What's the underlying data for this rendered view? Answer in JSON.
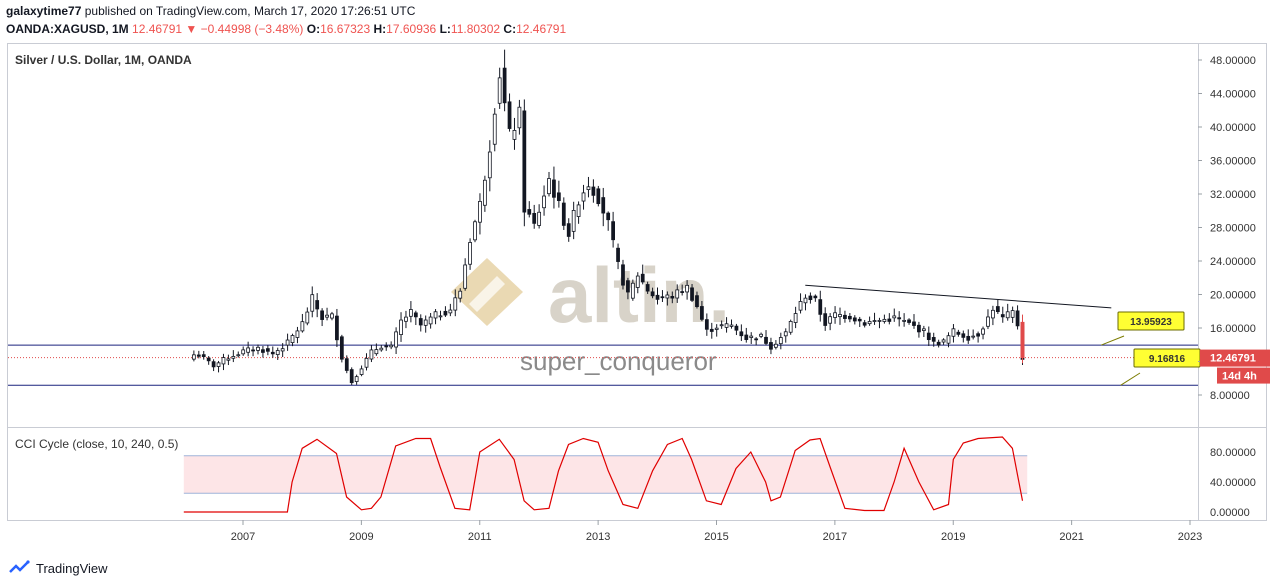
{
  "header": {
    "author": "galaxytime77",
    "published_text": "published on TradingView.com, March 17, 2020 17:26:51 UTC",
    "symbol": "OANDA:XAGUSD, 1M",
    "last": "12.46791",
    "change": "−0.44998 (−3.48%)",
    "o_label": "O:",
    "o_value": "16.67323",
    "h_label": "H:",
    "h_value": "17.60936",
    "l_label": "L:",
    "l_value": "11.80302",
    "c_label": "C:",
    "c_value": "12.46791"
  },
  "footer": {
    "brand": "TradingView"
  },
  "colors": {
    "up": "#131722",
    "down": "#e04a4a",
    "cci": "#e00000",
    "band_fill": "#fde5e7",
    "hline": "#1a237e"
  },
  "chart_data": [
    {
      "type": "candlestick",
      "title": "Silver / U.S. Dollar, 1M, OANDA",
      "ylim": [
        4.5,
        49.5
      ],
      "y_ticks": [
        {
          "v": 8,
          "label": "8.00000"
        },
        {
          "v": 12,
          "label": "12.00000"
        },
        {
          "v": 16,
          "label": "16.00000"
        },
        {
          "v": 20,
          "label": "20.00000"
        },
        {
          "v": 24,
          "label": "24.00000"
        },
        {
          "v": 28,
          "label": "28.00000"
        },
        {
          "v": 32,
          "label": "32.00000"
        },
        {
          "v": 36,
          "label": "36.00000"
        },
        {
          "v": 40,
          "label": "40.00000"
        },
        {
          "v": 44,
          "label": "44.00000"
        },
        {
          "v": 48,
          "label": "48.00000"
        }
      ],
      "x_range": [
        2005.83,
        2023.0
      ],
      "x_ticks": [
        {
          "v": 2007,
          "label": "2007"
        },
        {
          "v": 2009,
          "label": "2009"
        },
        {
          "v": 2011,
          "label": "2011"
        },
        {
          "v": 2013,
          "label": "2013"
        },
        {
          "v": 2015,
          "label": "2015"
        },
        {
          "v": 2017,
          "label": "2017"
        },
        {
          "v": 2019,
          "label": "2019"
        },
        {
          "v": 2021,
          "label": "2021"
        },
        {
          "v": 2023,
          "label": "2023"
        }
      ],
      "monthly_closes": [
        {
          "t": 2006.25,
          "c": 12.8
        },
        {
          "t": 2006.5,
          "c": 11.5
        },
        {
          "t": 2006.75,
          "c": 12.5
        },
        {
          "t": 2007.0,
          "c": 13.2
        },
        {
          "t": 2007.25,
          "c": 13.6
        },
        {
          "t": 2007.5,
          "c": 12.9
        },
        {
          "t": 2007.75,
          "c": 14.2
        },
        {
          "t": 2008.0,
          "c": 16.5
        },
        {
          "t": 2008.17,
          "c": 19.5
        },
        {
          "t": 2008.33,
          "c": 17.2
        },
        {
          "t": 2008.5,
          "c": 17.5
        },
        {
          "t": 2008.67,
          "c": 12.5
        },
        {
          "t": 2008.83,
          "c": 9.5
        },
        {
          "t": 2009.0,
          "c": 11.3
        },
        {
          "t": 2009.17,
          "c": 13.1
        },
        {
          "t": 2009.33,
          "c": 13.9
        },
        {
          "t": 2009.5,
          "c": 13.6
        },
        {
          "t": 2009.67,
          "c": 16.8
        },
        {
          "t": 2009.83,
          "c": 17.9
        },
        {
          "t": 2010.0,
          "c": 16.3
        },
        {
          "t": 2010.25,
          "c": 17.5
        },
        {
          "t": 2010.5,
          "c": 18.2
        },
        {
          "t": 2010.67,
          "c": 20.5
        },
        {
          "t": 2010.83,
          "c": 26.5
        },
        {
          "t": 2011.0,
          "c": 30.6
        },
        {
          "t": 2011.17,
          "c": 37.9
        },
        {
          "t": 2011.33,
          "c": 46.8
        },
        {
          "t": 2011.5,
          "c": 38.9
        },
        {
          "t": 2011.67,
          "c": 41.4
        },
        {
          "t": 2011.75,
          "c": 30.4
        },
        {
          "t": 2011.92,
          "c": 28.2
        },
        {
          "t": 2012.17,
          "c": 33.8
        },
        {
          "t": 2012.33,
          "c": 30.7
        },
        {
          "t": 2012.5,
          "c": 27.2
        },
        {
          "t": 2012.67,
          "c": 31.4
        },
        {
          "t": 2012.83,
          "c": 33.4
        },
        {
          "t": 2013.0,
          "c": 31.7
        },
        {
          "t": 2013.17,
          "c": 28.4
        },
        {
          "t": 2013.33,
          "c": 23.6
        },
        {
          "t": 2013.5,
          "c": 19.8
        },
        {
          "t": 2013.67,
          "c": 22.4
        },
        {
          "t": 2013.83,
          "c": 20.6
        },
        {
          "t": 2014.0,
          "c": 19.5
        },
        {
          "t": 2014.25,
          "c": 19.8
        },
        {
          "t": 2014.5,
          "c": 20.9
        },
        {
          "t": 2014.67,
          "c": 18.6
        },
        {
          "t": 2014.83,
          "c": 15.6
        },
        {
          "t": 2015.0,
          "c": 16.2
        },
        {
          "t": 2015.25,
          "c": 16.3
        },
        {
          "t": 2015.5,
          "c": 14.8
        },
        {
          "t": 2015.75,
          "c": 15.0
        },
        {
          "t": 2015.92,
          "c": 13.8
        },
        {
          "t": 2016.17,
          "c": 15.4
        },
        {
          "t": 2016.33,
          "c": 17.8
        },
        {
          "t": 2016.5,
          "c": 19.9
        },
        {
          "t": 2016.67,
          "c": 19.2
        },
        {
          "t": 2016.83,
          "c": 16.5
        },
        {
          "t": 2017.0,
          "c": 17.6
        },
        {
          "t": 2017.25,
          "c": 17.4
        },
        {
          "t": 2017.5,
          "c": 16.6
        },
        {
          "t": 2017.75,
          "c": 16.9
        },
        {
          "t": 2018.0,
          "c": 17.2
        },
        {
          "t": 2018.25,
          "c": 16.5
        },
        {
          "t": 2018.5,
          "c": 15.6
        },
        {
          "t": 2018.67,
          "c": 14.2
        },
        {
          "t": 2018.83,
          "c": 14.3
        },
        {
          "t": 2019.0,
          "c": 15.6
        },
        {
          "t": 2019.25,
          "c": 14.9
        },
        {
          "t": 2019.42,
          "c": 15.3
        },
        {
          "t": 2019.58,
          "c": 17.1
        },
        {
          "t": 2019.67,
          "c": 18.4
        },
        {
          "t": 2019.83,
          "c": 17.1
        },
        {
          "t": 2020.0,
          "c": 17.9
        },
        {
          "t": 2020.08,
          "c": 16.7
        },
        {
          "t": 2020.17,
          "c": 12.47
        }
      ],
      "horizontal_lines": [
        {
          "v": 13.95923
        },
        {
          "v": 9.16816
        }
      ],
      "last_price_line": {
        "v": 12.46791
      },
      "trendline": {
        "from": {
          "t": 2016.5,
          "v": 21.1
        },
        "to": {
          "t": 2021.67,
          "v": 18.4
        }
      },
      "callouts": [
        {
          "label": "13.95923",
          "t": 2021.67,
          "v": 13.95923
        },
        {
          "label": "9.16816",
          "t": 2021.83,
          "v": 9.16816
        }
      ],
      "price_labels": [
        {
          "label": "12.46791",
          "v": 12.46791
        },
        {
          "label": "14d 4h",
          "role": "countdown"
        }
      ],
      "watermark": {
        "brand": "altin.",
        "user": "super_conqueror"
      }
    },
    {
      "type": "line",
      "title": "CCI Cycle (close, 10, 240, 0.5)",
      "ylim": [
        -10,
        110
      ],
      "y_ticks": [
        {
          "v": 0,
          "label": "0.00000"
        },
        {
          "v": 40,
          "label": "40.00000"
        },
        {
          "v": 80,
          "label": "80.00000"
        }
      ],
      "band": [
        25,
        75
      ],
      "series": [
        {
          "x": [
            2006.0,
            2007.75,
            2007.83,
            2008.0,
            2008.25,
            2008.58,
            2008.75,
            2009.0,
            2009.17,
            2009.33,
            2009.58,
            2009.92,
            2010.17,
            2010.33,
            2010.58,
            2010.83,
            2011.0,
            2011.33,
            2011.58,
            2011.75,
            2011.92,
            2012.17,
            2012.33,
            2012.5,
            2012.75,
            2013.0,
            2013.17,
            2013.42,
            2013.67,
            2013.92,
            2014.17,
            2014.42,
            2014.58,
            2014.83,
            2015.08,
            2015.33,
            2015.58,
            2015.83,
            2015.92,
            2016.08,
            2016.33,
            2016.58,
            2016.75,
            2016.92,
            2017.17,
            2017.5,
            2017.83,
            2018.0,
            2018.17,
            2018.42,
            2018.67,
            2018.92,
            2019.0,
            2019.17,
            2019.42,
            2019.83,
            2020.0,
            2020.17
          ],
          "values": [
            0,
            0,
            40,
            85,
            97,
            78,
            20,
            3,
            5,
            20,
            88,
            98,
            98,
            60,
            5,
            3,
            80,
            97,
            70,
            15,
            3,
            5,
            55,
            90,
            98,
            93,
            55,
            10,
            5,
            55,
            90,
            98,
            70,
            15,
            10,
            58,
            80,
            40,
            15,
            20,
            82,
            96,
            98,
            60,
            5,
            2,
            2,
            40,
            85,
            40,
            3,
            10,
            70,
            92,
            98,
            100,
            85,
            15
          ]
        }
      ]
    }
  ]
}
